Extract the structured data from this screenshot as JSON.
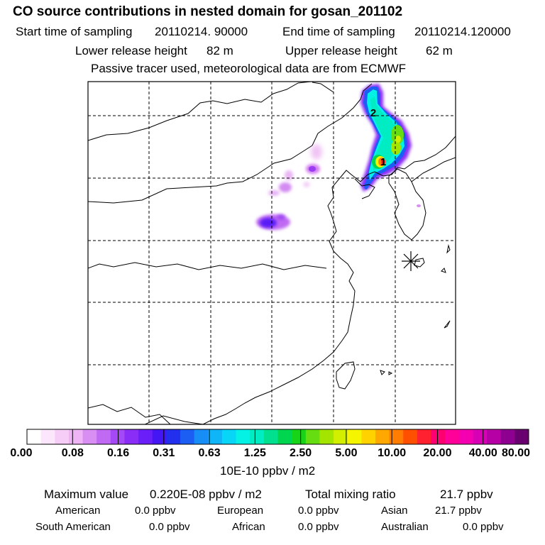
{
  "header": {
    "title": "CO  source contributions in nested domain for gosan_201102",
    "start_label": "Start time of sampling",
    "start_value": "20110214. 90000",
    "end_label": "End time of sampling",
    "end_value": "20110214.120000",
    "lower_label": "Lower release height",
    "lower_value": "82 m",
    "upper_label": "Upper release height",
    "upper_value": "62 m",
    "note": "Passive tracer used, meteorological data are from ECMWF"
  },
  "map": {
    "markers": [
      {
        "label": "1"
      },
      {
        "label": "2"
      }
    ],
    "receptor_symbol": "receptor-star"
  },
  "colorbar": {
    "colors": [
      "#ffffff",
      "#fbe6fb",
      "#f6cdf6",
      "#efb4f5",
      "#d98ef4",
      "#c06af3",
      "#a449f5",
      "#8a2ef7",
      "#6a1ef8",
      "#4316f3",
      "#2230ee",
      "#1c5ef4",
      "#168df7",
      "#0fb5f7",
      "#07d6f7",
      "#04f2e6",
      "#00ecc2",
      "#00e08e",
      "#00d550",
      "#18d418",
      "#66dd10",
      "#a4e500",
      "#d2ef00",
      "#f5f500",
      "#ffd200",
      "#ffa800",
      "#ff7d00",
      "#ff4f00",
      "#ff2030",
      "#ff0070",
      "#ff0098",
      "#f500b0",
      "#d800b5",
      "#b600a6",
      "#8e0090",
      "#6a0070"
    ],
    "labels": [
      "0.00",
      "0.08",
      "0.16",
      "0.31",
      "0.63",
      "1.25",
      "2.50",
      "5.00",
      "10.00",
      "20.00",
      "40.00",
      "80.00"
    ],
    "unit": "10E-10 ppbv / m2"
  },
  "summary": {
    "max_label": "Maximum value",
    "max_value": "0.220E-08 ppbv / m2",
    "total_label": "Total mixing ratio",
    "total_value": "21.7 ppbv",
    "regions": [
      {
        "name": "American",
        "value": "0.0 ppbv"
      },
      {
        "name": "European",
        "value": "0.0 ppbv"
      },
      {
        "name": "Asian",
        "value": "21.7 ppbv"
      },
      {
        "name": "South American",
        "value": "0.0 ppbv"
      },
      {
        "name": "African",
        "value": "0.0 ppbv"
      },
      {
        "name": "Australian",
        "value": "0.0 ppbv"
      }
    ]
  }
}
